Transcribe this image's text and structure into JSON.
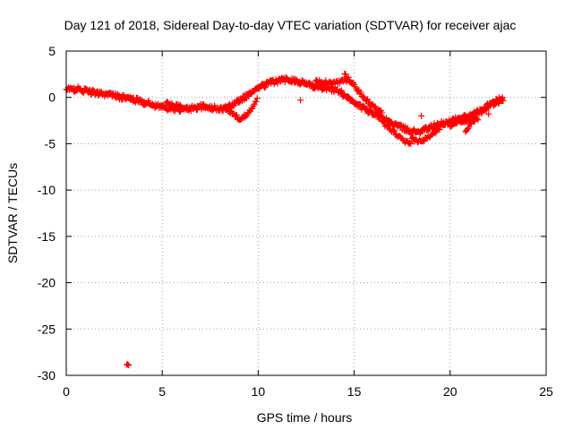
{
  "chart_data": {
    "type": "scatter",
    "title": "Day 121 of 2018, Sidereal Day-to-day VTEC variation (SDTVAR) for receiver ajac",
    "xlabel": "GPS time / hours",
    "ylabel": "SDTVAR / TECUs",
    "xlim": [
      0,
      25
    ],
    "ylim": [
      -30,
      5
    ],
    "xticks": [
      0,
      5,
      10,
      15,
      20,
      25
    ],
    "yticks": [
      -30,
      -25,
      -20,
      -15,
      -10,
      -5,
      0,
      5
    ],
    "grid": true,
    "marker": "+",
    "color": "#ff0000",
    "series": [
      {
        "name": "SDTVAR",
        "trend": [
          [
            0.0,
            0.8
          ],
          [
            0.5,
            0.9
          ],
          [
            1.0,
            0.7
          ],
          [
            1.5,
            0.5
          ],
          [
            2.0,
            0.4
          ],
          [
            2.5,
            0.2
          ],
          [
            3.0,
            0.0
          ],
          [
            3.5,
            -0.2
          ],
          [
            4.0,
            -0.5
          ],
          [
            4.5,
            -0.8
          ],
          [
            5.0,
            -1.0
          ],
          [
            5.5,
            -1.2
          ],
          [
            6.0,
            -1.3
          ],
          [
            6.5,
            -1.2
          ],
          [
            7.0,
            -1.0
          ],
          [
            7.5,
            -1.1
          ],
          [
            8.0,
            -1.3
          ],
          [
            8.5,
            -1.0
          ],
          [
            9.0,
            -0.3
          ],
          [
            9.5,
            0.3
          ],
          [
            10.0,
            1.0
          ],
          [
            10.5,
            1.5
          ],
          [
            11.0,
            1.8
          ],
          [
            11.5,
            2.0
          ],
          [
            12.0,
            1.8
          ],
          [
            12.5,
            1.5
          ],
          [
            13.0,
            1.2
          ],
          [
            13.5,
            1.0
          ],
          [
            14.0,
            0.8
          ],
          [
            14.5,
            0.3
          ],
          [
            15.0,
            -0.5
          ],
          [
            15.5,
            -1.2
          ],
          [
            16.0,
            -1.8
          ],
          [
            16.5,
            -2.3
          ],
          [
            17.0,
            -2.8
          ],
          [
            17.5,
            -3.3
          ],
          [
            18.0,
            -3.7
          ],
          [
            18.5,
            -3.6
          ],
          [
            19.0,
            -3.2
          ],
          [
            19.5,
            -2.9
          ],
          [
            20.0,
            -2.6
          ],
          [
            20.5,
            -2.3
          ],
          [
            21.0,
            -2.0
          ],
          [
            21.5,
            -1.6
          ],
          [
            22.0,
            -1.0
          ],
          [
            22.5,
            -0.3
          ],
          [
            22.8,
            0.0
          ]
        ],
        "branches": [
          [
            [
              5.2,
              -0.6
            ],
            [
              5.6,
              -0.9
            ],
            [
              6.0,
              -1.0
            ]
          ],
          [
            [
              8.3,
              -1.2
            ],
            [
              8.7,
              -1.8
            ],
            [
              9.1,
              -2.4
            ],
            [
              9.5,
              -1.6
            ],
            [
              10.0,
              -0.1
            ]
          ],
          [
            [
              13.0,
              1.8
            ],
            [
              13.8,
              1.5
            ],
            [
              14.5,
              1.8
            ],
            [
              15.0,
              1.5
            ]
          ],
          [
            [
              14.5,
              2.5
            ],
            [
              15.0,
              1.3
            ],
            [
              15.5,
              0.0
            ],
            [
              16.0,
              -1.0
            ],
            [
              16.5,
              -1.8
            ]
          ],
          [
            [
              16.5,
              -2.8
            ],
            [
              17.0,
              -3.6
            ],
            [
              17.5,
              -4.6
            ],
            [
              18.0,
              -5.2
            ]
          ],
          [
            [
              18.0,
              -4.5
            ],
            [
              18.5,
              -4.8
            ],
            [
              19.0,
              -4.0
            ],
            [
              19.5,
              -3.2
            ]
          ],
          [
            [
              20.0,
              -3.0
            ],
            [
              20.5,
              -2.5
            ],
            [
              21.0,
              -2.5
            ],
            [
              21.5,
              -2.3
            ]
          ],
          [
            [
              21.5,
              -1.5
            ],
            [
              22.0,
              -0.8
            ],
            [
              22.5,
              -0.5
            ],
            [
              22.8,
              -0.2
            ]
          ],
          [
            [
              20.8,
              -3.6
            ],
            [
              21.0,
              -3.0
            ],
            [
              21.2,
              -2.5
            ],
            [
              21.4,
              -1.8
            ]
          ]
        ],
        "outliers": [
          [
            3.2,
            -28.8
          ],
          [
            3.25,
            -28.9
          ],
          [
            3.15,
            -28.85
          ],
          [
            12.2,
            -0.3
          ],
          [
            18.5,
            -2.0
          ],
          [
            22.0,
            -1.8
          ]
        ]
      }
    ]
  }
}
